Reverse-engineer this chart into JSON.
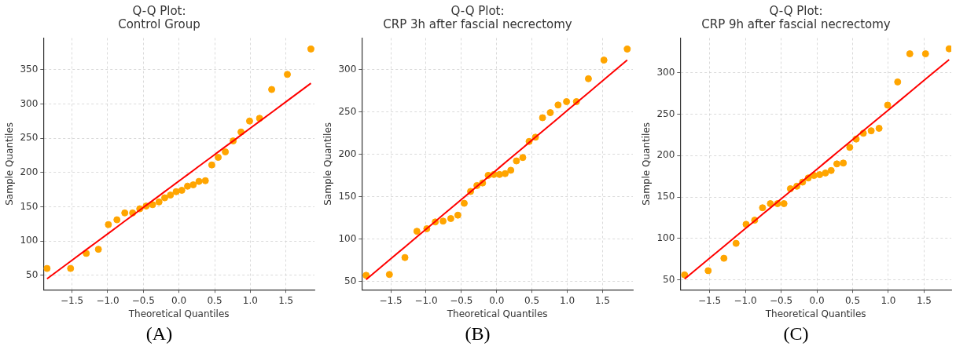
{
  "chart_data": [
    {
      "type": "scatter",
      "title": "Q-Q Plot:\nControl Group",
      "xlabel": "Theoretical Quantiles",
      "ylabel": "Sample Quantiles",
      "annotations": [
        "(A)"
      ],
      "x": [
        -1.85,
        -1.52,
        -1.3,
        -1.13,
        -0.99,
        -0.87,
        -0.76,
        -0.65,
        -0.55,
        -0.46,
        -0.37,
        -0.28,
        -0.2,
        -0.12,
        -0.04,
        0.04,
        0.12,
        0.2,
        0.28,
        0.37,
        0.46,
        0.55,
        0.65,
        0.76,
        0.87,
        0.99,
        1.13,
        1.3,
        1.52,
        1.85
      ],
      "series": [
        {
          "color": "#ffa500",
          "marker": "circle",
          "values": [
            60,
            60,
            82,
            88,
            124,
            131,
            141,
            141,
            147,
            151,
            153,
            157,
            163,
            167,
            172,
            174,
            180,
            182,
            187,
            188,
            211,
            222,
            230,
            246,
            259,
            275,
            279,
            321,
            343,
            380
          ]
        },
        {
          "type": "line",
          "color": "#ff0000",
          "marker": "none",
          "values": [
            45,
            70.4,
            87.4,
            100.5,
            111.2,
            120.5,
            129,
            137.4,
            145.1,
            152.1,
            159,
            165.9,
            172.1,
            178.3,
            184.4,
            190.6,
            196.7,
            202.9,
            209.1,
            216,
            222.9,
            229.9,
            237.6,
            246,
            254.5,
            263.8,
            274.5,
            287.6,
            304.6,
            330
          ]
        }
      ],
      "xlim": [
        -1.9,
        1.9
      ],
      "xticks": [
        {
          "value": -1.5,
          "label": "−1.5"
        },
        {
          "value": -1,
          "label": "−1.0"
        },
        {
          "value": -0.5,
          "label": "−0.5"
        },
        {
          "value": 0,
          "label": "0.0"
        },
        {
          "value": 0.5,
          "label": "0.5"
        },
        {
          "value": 1,
          "label": "1.0"
        },
        {
          "value": 1.5,
          "label": "1.5"
        }
      ],
      "ylim": [
        29,
        396
      ],
      "yticks": [
        50,
        100,
        150,
        200,
        250,
        300,
        350
      ],
      "grid": true,
      "legend": false
    },
    {
      "type": "scatter",
      "title": "Q-Q Plot:\nCRP 3h after fascial necrectomy",
      "xlabel": "Theoretical Quantiles",
      "ylabel": "Sample Quantiles",
      "annotations": [
        "(B)"
      ],
      "x": [
        -1.85,
        -1.52,
        -1.3,
        -1.13,
        -0.99,
        -0.87,
        -0.76,
        -0.65,
        -0.55,
        -0.46,
        -0.37,
        -0.28,
        -0.2,
        -0.12,
        -0.04,
        0.04,
        0.12,
        0.2,
        0.28,
        0.37,
        0.46,
        0.55,
        0.65,
        0.76,
        0.87,
        0.99,
        1.13,
        1.3,
        1.52,
        1.85
      ],
      "series": [
        {
          "color": "#ffa500",
          "marker": "circle",
          "values": [
            57,
            58,
            78,
            109,
            112,
            120,
            121,
            124,
            128,
            142,
            156,
            163,
            166,
            175,
            176,
            176,
            177,
            181,
            192,
            196,
            215,
            220,
            243,
            249,
            258,
            262,
            262,
            289,
            311,
            324
          ]
        },
        {
          "type": "line",
          "color": "#ff0000",
          "marker": "none",
          "values": [
            52,
            75.1,
            90.5,
            102.4,
            112.2,
            120.6,
            128.3,
            136,
            143,
            149.3,
            155.6,
            161.9,
            167.5,
            173.1,
            178.7,
            184.3,
            189.9,
            195.5,
            201.1,
            207.4,
            213.7,
            220,
            227,
            234.7,
            242.4,
            250.8,
            260.6,
            272.5,
            287.9,
            311
          ]
        }
      ],
      "xlim": [
        -1.91,
        1.93
      ],
      "xticks": [
        {
          "value": -1.5,
          "label": "−1.5"
        },
        {
          "value": -1,
          "label": "−1.0"
        },
        {
          "value": -0.5,
          "label": "−0.5"
        },
        {
          "value": 0,
          "label": "0.0"
        },
        {
          "value": 0.5,
          "label": "0.5"
        },
        {
          "value": 1,
          "label": "1.0"
        },
        {
          "value": 1.5,
          "label": "1.5"
        }
      ],
      "ylim": [
        40,
        337
      ],
      "yticks": [
        50,
        100,
        150,
        200,
        250,
        300
      ],
      "grid": true,
      "legend": false
    },
    {
      "type": "scatter",
      "title": "Q-Q Plot:\nCRP 9h after fascial necrectomy",
      "xlabel": "Theoretical Quantiles",
      "ylabel": "Sample Quantiles",
      "annotations": [
        "(C)"
      ],
      "x": [
        -1.85,
        -1.52,
        -1.3,
        -1.13,
        -0.99,
        -0.87,
        -0.76,
        -0.65,
        -0.55,
        -0.46,
        -0.37,
        -0.28,
        -0.2,
        -0.12,
        -0.04,
        0.04,
        0.12,
        0.2,
        0.28,
        0.37,
        0.46,
        0.55,
        0.65,
        0.76,
        0.87,
        0.99,
        1.13,
        1.3,
        1.52,
        1.85
      ],
      "series": [
        {
          "color": "#ffa500",
          "marker": "circle",
          "values": [
            56,
            61,
            76,
            94,
            117,
            122,
            137,
            142,
            142,
            142,
            160,
            163,
            168,
            173,
            176,
            177,
            179,
            182,
            190,
            191,
            210,
            220,
            227,
            230,
            233,
            261,
            289,
            323,
            323,
            329
          ]
        },
        {
          "type": "line",
          "color": "#ff0000",
          "marker": "none",
          "values": [
            51,
            74.6,
            90.4,
            102.6,
            112.6,
            121.2,
            129.1,
            136.9,
            144.1,
            150.6,
            157,
            163.4,
            169.2,
            174.9,
            180.6,
            186.4,
            192.1,
            197.8,
            203.6,
            210,
            216.4,
            222.9,
            230.1,
            237.9,
            245.8,
            254.4,
            264.4,
            276.6,
            292.4,
            316
          ]
        }
      ],
      "xlim": [
        -1.91,
        1.88
      ],
      "xticks": [
        {
          "value": -1.5,
          "label": "−1.5"
        },
        {
          "value": -1,
          "label": "−1.0"
        },
        {
          "value": -0.5,
          "label": "−0.5"
        },
        {
          "value": 0,
          "label": "0.0"
        },
        {
          "value": 0.5,
          "label": "0.5"
        },
        {
          "value": 1,
          "label": "1.0"
        },
        {
          "value": 1.5,
          "label": "1.5"
        }
      ],
      "ylim": [
        38,
        342
      ],
      "yticks": [
        50,
        100,
        150,
        200,
        250,
        300
      ],
      "grid": true,
      "legend": false
    }
  ]
}
